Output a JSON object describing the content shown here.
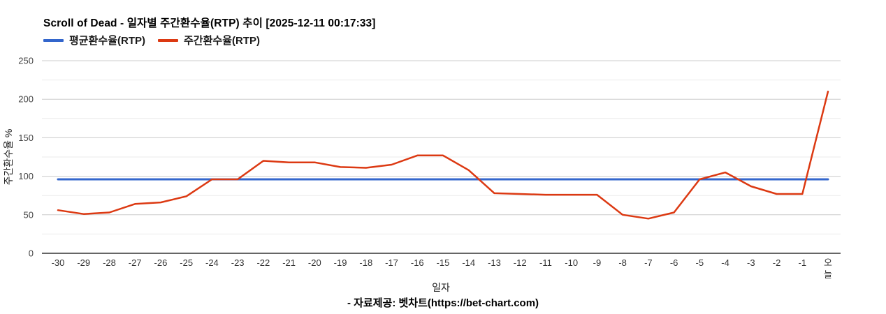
{
  "footer": {
    "text": "- 자료제공: 벳차트(https://bet-chart.com)"
  },
  "chart_data": {
    "type": "line",
    "title": "Scroll of Dead - 일자별 주간환수율(RTP) 추이 [2025-12-11 00:17:33]",
    "xlabel": "일자",
    "ylabel": "주간환수율 %",
    "ylim": [
      0,
      250
    ],
    "y_ticks": [
      0,
      50,
      100,
      150,
      200,
      250
    ],
    "y_minor_ticks": [
      25,
      75,
      125,
      175,
      225
    ],
    "grid": true,
    "legend_position": "top",
    "categories": [
      "-30",
      "-29",
      "-28",
      "-27",
      "-26",
      "-25",
      "-24",
      "-23",
      "-22",
      "-21",
      "-20",
      "-19",
      "-18",
      "-17",
      "-16",
      "-15",
      "-14",
      "-13",
      "-12",
      "-11",
      "-10",
      "-9",
      "-8",
      "-7",
      "-6",
      "-5",
      "-4",
      "-3",
      "-2",
      "-1",
      "오늘"
    ],
    "series": [
      {
        "name": "평균환수율(RTP)",
        "color": "#3366cc",
        "values": [
          96,
          96,
          96,
          96,
          96,
          96,
          96,
          96,
          96,
          96,
          96,
          96,
          96,
          96,
          96,
          96,
          96,
          96,
          96,
          96,
          96,
          96,
          96,
          96,
          96,
          96,
          96,
          96,
          96,
          96,
          96
        ]
      },
      {
        "name": "주간환수율(RTP)",
        "color": "#dc3912",
        "values": [
          56,
          51,
          53,
          64,
          66,
          74,
          96,
          96,
          120,
          118,
          118,
          112,
          111,
          115,
          127,
          127,
          108,
          78,
          77,
          76,
          76,
          76,
          50,
          45,
          53,
          96,
          105,
          87,
          77,
          77,
          210
        ]
      }
    ],
    "colors": {
      "grid_major": "#cccccc",
      "grid_minor": "#ebebeb",
      "axis_baseline": "#333333"
    }
  }
}
